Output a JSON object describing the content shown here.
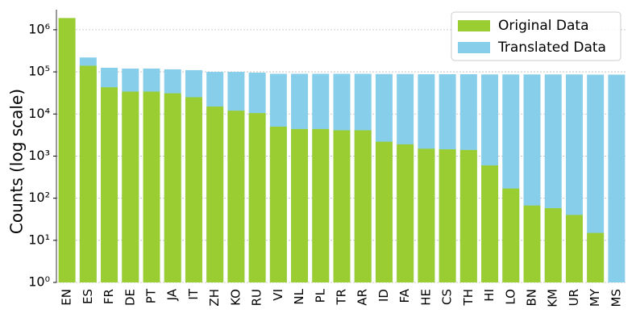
{
  "chart_data": {
    "type": "bar",
    "ylabel": "Counts (log scale)",
    "log_scale": true,
    "grid": true,
    "legend": "upper right",
    "categories": [
      "EN",
      "ES",
      "FR",
      "DE",
      "PT",
      "JA",
      "IT",
      "ZH",
      "KO",
      "RU",
      "VI",
      "NL",
      "PL",
      "TR",
      "AR",
      "ID",
      "FA",
      "HE",
      "CS",
      "TH",
      "HI",
      "LO",
      "BN",
      "KM",
      "UR",
      "MY",
      "MS"
    ],
    "series": [
      {
        "name": "Translated Data",
        "color": "#87ceeb",
        "values": [
          null,
          220000,
          125000,
          120000,
          120000,
          115000,
          110000,
          100000,
          100000,
          96000,
          90000,
          90000,
          90000,
          90000,
          90000,
          89000,
          89000,
          88000,
          88000,
          88000,
          87000,
          87000,
          87000,
          87000,
          87000,
          86000,
          86000
        ]
      },
      {
        "name": "Original Data",
        "color": "#9acd32",
        "values": [
          1900000,
          140000,
          43000,
          34000,
          34000,
          31000,
          25000,
          15000,
          12000,
          10500,
          5000,
          4400,
          4400,
          4100,
          4100,
          2200,
          1900,
          1500,
          1450,
          1400,
          600,
          170,
          67,
          58,
          40,
          15,
          null
        ]
      }
    ],
    "ylim": [
      1,
      3000000
    ],
    "yticks": [
      {
        "value": 1,
        "label": "10⁰"
      },
      {
        "value": 10,
        "label": "10¹"
      },
      {
        "value": 100,
        "label": "10²"
      },
      {
        "value": 1000,
        "label": "10³"
      },
      {
        "value": 10000,
        "label": "10⁴"
      },
      {
        "value": 100000,
        "label": "10⁵"
      },
      {
        "value": 1000000,
        "label": "10⁶"
      }
    ]
  }
}
